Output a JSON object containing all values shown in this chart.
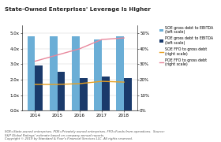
{
  "title": "State-Owned Enterprises' Leverage Is Higher",
  "years": [
    2014,
    2015,
    2016,
    2017,
    2018
  ],
  "soe_ebitda": [
    4.8,
    4.8,
    4.8,
    4.6,
    4.8
  ],
  "poe_ebitda": [
    2.9,
    2.5,
    2.1,
    2.2,
    2.1
  ],
  "soe_ffo": [
    17,
    17,
    17.5,
    19,
    18.5
  ],
  "poe_ffo": [
    32,
    36,
    40,
    46,
    47
  ],
  "ylim_left": [
    0,
    5.5
  ],
  "ylim_right": [
    0,
    55
  ],
  "yticks_left": [
    0.0,
    1.0,
    2.0,
    3.0,
    4.0,
    5.0
  ],
  "yticks_right": [
    0,
    10,
    20,
    30,
    40,
    50
  ],
  "ytick_labels_left": [
    "0.0x",
    "1.0x",
    "2.0x",
    "3.0x",
    "4.0x",
    "5.0x"
  ],
  "ytick_labels_right": [
    "0%",
    "10%",
    "20%",
    "30%",
    "40%",
    "50%"
  ],
  "soe_bar_color": "#6baed6",
  "poe_bar_color": "#1a3a6b",
  "soe_line_color": "#e8a020",
  "poe_line_color": "#e8879c",
  "legend_labels": [
    "SOE gross debt to EBITDA\n(left scale)",
    "POE gross debt to EBITDA\n(left scale)",
    "SOE FFO to gross debt\n(right scale)",
    "POE FFO to gross debt\n(right scale)"
  ],
  "footnote": "SOE=State-owned enterprises. POE=Privately owned enterprises. FFO=Funds from operations.  Source:\nS&P Global Ratings' estimate based on company annual reports.\nCopyright © 2019 by Standard & Poor's Financial Services LLC. All rights reserved."
}
